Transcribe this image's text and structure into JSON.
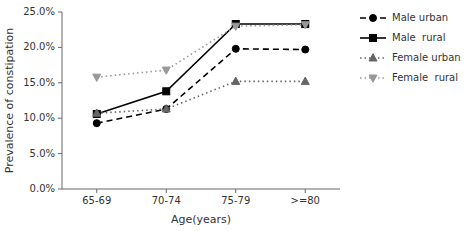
{
  "chart_data": {
    "type": "line",
    "xlabel": "Age(years)",
    "ylabel": "Prevalence of constipation",
    "categories": [
      "65-69",
      "70-74",
      "75-79",
      ">=80"
    ],
    "series": [
      {
        "name": "Male urban",
        "color": "#000000",
        "marker": "circle",
        "line_style": "dashed",
        "values": [
          0.093,
          0.113,
          0.198,
          0.197
        ]
      },
      {
        "name": "Male  rural",
        "color": "#000000",
        "marker": "square",
        "line_style": "solid",
        "values": [
          0.106,
          0.138,
          0.233,
          0.233
        ]
      },
      {
        "name": "Female urban",
        "color": "#666666",
        "marker": "triangle-up",
        "line_style": "dotted",
        "values": [
          0.107,
          0.113,
          0.152,
          0.152
        ]
      },
      {
        "name": "Female  rural",
        "color": "#999999",
        "marker": "triangle-down",
        "line_style": "dotted",
        "values": [
          0.158,
          0.168,
          0.23,
          0.232
        ]
      }
    ],
    "ylim": [
      0.0,
      0.25
    ],
    "yticks": [
      {
        "value": 0.0,
        "label": "0.0%"
      },
      {
        "value": 0.05,
        "label": "5.0%"
      },
      {
        "value": 0.1,
        "label": "10.0%"
      },
      {
        "value": 0.15,
        "label": "15.0%"
      },
      {
        "value": 0.2,
        "label": "20.0%"
      },
      {
        "value": 0.25,
        "label": "25.0%"
      }
    ],
    "grid": false,
    "legend": "right"
  }
}
